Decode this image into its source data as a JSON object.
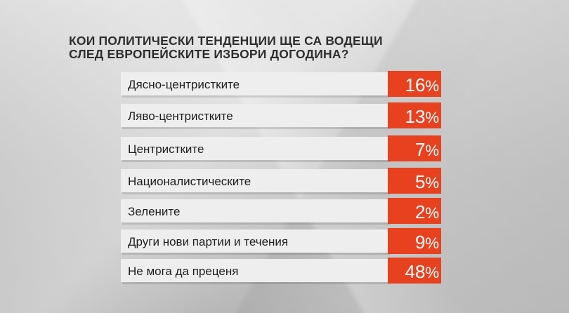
{
  "chart_data": {
    "type": "bar",
    "title_lines": [
      "Кои политически тенденции ще са водещи",
      "след европейските избори догодина?"
    ],
    "categories": [
      "Дясно-центристките",
      "Ляво-центристките",
      "Центристките",
      "Националистическите",
      "Зелените",
      "Други нови партии и течения",
      "Не мога да преценя"
    ],
    "values": [
      16,
      13,
      7,
      5,
      2,
      9,
      48
    ],
    "unit": "%",
    "colors": {
      "label_bar": "#eeeeee",
      "value_box": "#e8411f",
      "text": "#1e1e1e"
    }
  }
}
